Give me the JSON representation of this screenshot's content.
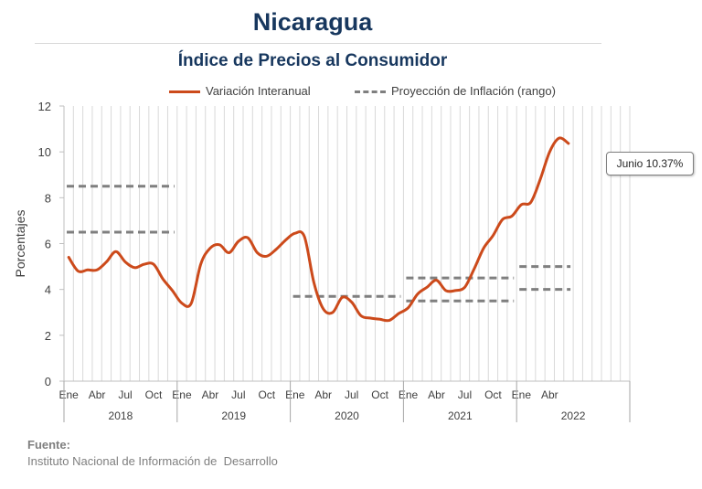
{
  "page": {
    "title": "Nicaragua",
    "subtitle": "Índice de Precios al Consumidor",
    "source_label": "Fuente:",
    "source_text": "Instituto Nacional de Información de  Desarrollo",
    "callout": "Junio 10.37%"
  },
  "chart_data": {
    "type": "line",
    "ylabel": "Porcentajes",
    "ylim": [
      0,
      12
    ],
    "yticks": [
      0,
      2,
      4,
      6,
      8,
      10,
      12
    ],
    "grid": "vertical monthly gridlines",
    "legend_position": "top",
    "month_ticks": [
      "Ene",
      "Abr",
      "Jul",
      "Oct",
      "Ene",
      "Abr",
      "Jul",
      "Oct",
      "Ene",
      "Abr",
      "Jul",
      "Oct",
      "Ene",
      "Abr",
      "Jul",
      "Oct",
      "Ene",
      "Abr"
    ],
    "years": [
      "2018",
      "2019",
      "2020",
      "2021",
      "2022"
    ],
    "colors": {
      "series": "#cc4a1b",
      "projection": "#7f7f7f",
      "grid": "#d9d9d9"
    },
    "series": [
      {
        "name": "Variación Interanual",
        "style": "solid",
        "x": [
          "2018-01",
          "2018-02",
          "2018-03",
          "2018-04",
          "2018-05",
          "2018-06",
          "2018-07",
          "2018-08",
          "2018-09",
          "2018-10",
          "2018-11",
          "2018-12",
          "2019-01",
          "2019-02",
          "2019-03",
          "2019-04",
          "2019-05",
          "2019-06",
          "2019-07",
          "2019-08",
          "2019-09",
          "2019-10",
          "2019-11",
          "2019-12",
          "2020-01",
          "2020-02",
          "2020-03",
          "2020-04",
          "2020-05",
          "2020-06",
          "2020-07",
          "2020-08",
          "2020-09",
          "2020-10",
          "2020-11",
          "2020-12",
          "2021-01",
          "2021-02",
          "2021-03",
          "2021-04",
          "2021-05",
          "2021-06",
          "2021-07",
          "2021-08",
          "2021-09",
          "2021-10",
          "2021-11",
          "2021-12",
          "2022-01",
          "2022-02",
          "2022-03",
          "2022-04",
          "2022-05",
          "2022-06"
        ],
        "values": [
          5.4,
          4.8,
          4.85,
          4.85,
          5.2,
          5.65,
          5.2,
          4.95,
          5.1,
          5.1,
          4.45,
          3.95,
          3.4,
          3.4,
          5.1,
          5.8,
          5.95,
          5.6,
          6.1,
          6.25,
          5.6,
          5.45,
          5.75,
          6.15,
          6.45,
          6.3,
          4.3,
          3.15,
          3.0,
          3.65,
          3.45,
          2.85,
          2.75,
          2.7,
          2.65,
          2.95,
          3.2,
          3.8,
          4.1,
          4.4,
          3.95,
          3.95,
          4.1,
          4.9,
          5.8,
          6.35,
          7.05,
          7.2,
          7.7,
          7.8,
          8.8,
          10.0,
          10.6,
          10.37
        ]
      },
      {
        "name": "Proyección de Inflación (rango)",
        "style": "dashed",
        "segments": [
          {
            "x": [
              "2018-01",
              "2018-12"
            ],
            "value": 8.5
          },
          {
            "x": [
              "2018-01",
              "2018-12"
            ],
            "value": 6.5
          },
          {
            "x": [
              "2020-01",
              "2020-12"
            ],
            "value": 3.7
          },
          {
            "x": [
              "2021-01",
              "2021-12"
            ],
            "value": 4.5
          },
          {
            "x": [
              "2021-01",
              "2021-12"
            ],
            "value": 3.5
          },
          {
            "x": [
              "2022-01",
              "2022-06"
            ],
            "value": 5.0
          },
          {
            "x": [
              "2022-01",
              "2022-06"
            ],
            "value": 4.0
          }
        ]
      }
    ]
  }
}
